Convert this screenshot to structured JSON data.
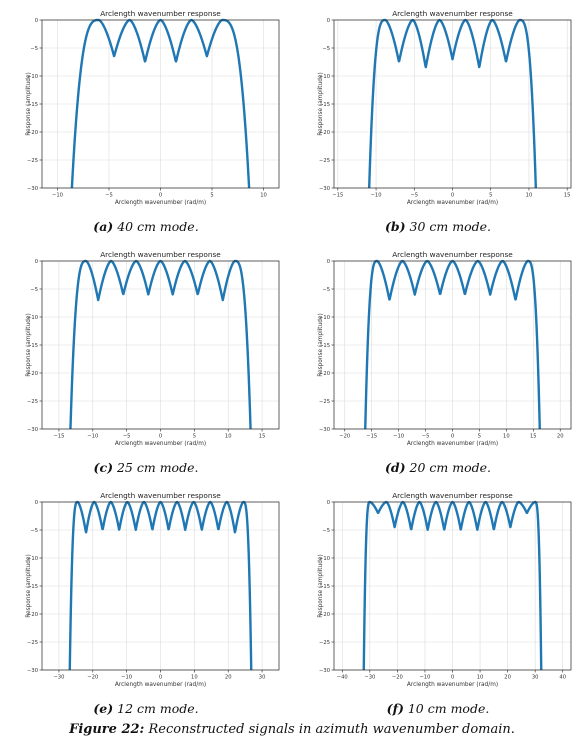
{
  "figure": {
    "caption_label": "Figure 22:",
    "caption_text": "Reconstructed signals in azimuth wavenumber domain."
  },
  "colors": {
    "line": "#1f77b4",
    "grid": "#dcdcdc"
  },
  "chart_data": [
    {
      "panel_label": "(a)",
      "caption": "40 cm mode.",
      "type": "line",
      "title": "Arclength wavenumber response",
      "xlabel": "Arclength wavenumber (rad/m)",
      "ylabel": "Response (amplitude)",
      "xlim": [
        -11.5,
        11.5
      ],
      "ylim": [
        -30,
        0
      ],
      "xticks": [
        -10,
        -5,
        0,
        5,
        10
      ],
      "yticks": [
        0,
        -5,
        -10,
        -15,
        -20,
        -25,
        -30
      ],
      "grid": true,
      "series": [
        {
          "x_edges": [
            -8.6,
            8.6
          ],
          "peaks": [
            -6.0,
            -3.0,
            0.0,
            3.0,
            6.0
          ],
          "dips": [
            {
              "x": -4.5,
              "y": -6.5
            },
            {
              "x": -1.5,
              "y": -7.5
            },
            {
              "x": 1.5,
              "y": -7.5
            },
            {
              "x": 4.5,
              "y": -6.5
            }
          ]
        }
      ]
    },
    {
      "panel_label": "(b)",
      "caption": "30 cm mode.",
      "type": "line",
      "title": "Arclength wavenumber response",
      "xlabel": "Arclength wavenumber (rad/m)",
      "ylabel": "Response (amplitude)",
      "xlim": [
        -15.5,
        15.5
      ],
      "ylim": [
        -30,
        0
      ],
      "xticks": [
        -15,
        -10,
        -5,
        0,
        5,
        10,
        15
      ],
      "yticks": [
        0,
        -5,
        -10,
        -15,
        -20,
        -25,
        -30
      ],
      "grid": true,
      "series": [
        {
          "x_edges": [
            -10.9,
            10.9
          ],
          "peaks": [
            -8.8,
            -5.2,
            -1.7,
            1.7,
            5.2,
            8.8
          ],
          "dips": [
            {
              "x": -7.0,
              "y": -7.5
            },
            {
              "x": -3.5,
              "y": -8.5
            },
            {
              "x": 0.0,
              "y": -7.0
            },
            {
              "x": 3.5,
              "y": -8.5
            },
            {
              "x": 7.0,
              "y": -7.5
            }
          ]
        }
      ]
    },
    {
      "panel_label": "(c)",
      "caption": "25 cm mode.",
      "type": "line",
      "title": "Arclength wavenumber response",
      "xlabel": "Arclength wavenumber (rad/m)",
      "ylabel": "Response (amplitude)",
      "xlim": [
        -17.5,
        17.5
      ],
      "ylim": [
        -30,
        0
      ],
      "xticks": [
        -15,
        -10,
        -5,
        0,
        5,
        10,
        15
      ],
      "yticks": [
        0,
        -5,
        -10,
        -15,
        -20,
        -25,
        -30
      ],
      "grid": true,
      "series": [
        {
          "x_edges": [
            -13.3,
            13.3
          ],
          "peaks": [
            -11.0,
            -7.3,
            -3.6,
            0.0,
            3.6,
            7.3,
            11.0
          ],
          "dips": [
            {
              "x": -9.2,
              "y": -7.0
            },
            {
              "x": -5.5,
              "y": -6.0
            },
            {
              "x": -1.8,
              "y": -6.0
            },
            {
              "x": 1.8,
              "y": -6.0
            },
            {
              "x": 5.5,
              "y": -6.0
            },
            {
              "x": 9.2,
              "y": -7.0
            }
          ]
        }
      ]
    },
    {
      "panel_label": "(d)",
      "caption": "20 cm mode.",
      "type": "line",
      "title": "Arclength wavenumber response",
      "xlabel": "Arclength wavenumber (rad/m)",
      "ylabel": "Response (amplitude)",
      "xlim": [
        -22,
        22
      ],
      "ylim": [
        -30,
        0
      ],
      "xticks": [
        -20,
        -15,
        -10,
        -5,
        0,
        5,
        10,
        15,
        20
      ],
      "yticks": [
        0,
        -5,
        -10,
        -15,
        -20,
        -25,
        -30
      ],
      "grid": true,
      "series": [
        {
          "x_edges": [
            -16.2,
            16.2
          ],
          "peaks": [
            -14.0,
            -9.3,
            -4.7,
            0.0,
            4.7,
            9.3,
            14.0
          ],
          "dips": [
            {
              "x": -11.7,
              "y": -7.0
            },
            {
              "x": -7.0,
              "y": -6.0
            },
            {
              "x": -2.3,
              "y": -6.0
            },
            {
              "x": 2.3,
              "y": -6.0
            },
            {
              "x": 7.0,
              "y": -6.0
            },
            {
              "x": 11.7,
              "y": -7.0
            }
          ]
        }
      ]
    },
    {
      "panel_label": "(e)",
      "caption": "12 cm mode.",
      "type": "line",
      "title": "Arclength wavenumber response",
      "xlabel": "Arclength wavenumber (rad/m)",
      "ylabel": "Response (amplitude)",
      "xlim": [
        -35,
        35
      ],
      "ylim": [
        -30,
        0
      ],
      "xticks": [
        -30,
        -20,
        -10,
        0,
        10,
        20,
        30
      ],
      "yticks": [
        0,
        -5,
        -10,
        -15,
        -20,
        -25,
        -30
      ],
      "grid": true,
      "series": [
        {
          "x_edges": [
            -26.8,
            26.8
          ],
          "peaks": [
            -24.5,
            -19.6,
            -14.7,
            -9.8,
            -4.9,
            0.0,
            4.9,
            9.8,
            14.7,
            19.6,
            24.5
          ],
          "dips": [
            {
              "x": -22.0,
              "y": -5.5
            },
            {
              "x": -17.1,
              "y": -5.0
            },
            {
              "x": -12.2,
              "y": -5.0
            },
            {
              "x": -7.3,
              "y": -5.0
            },
            {
              "x": -2.4,
              "y": -5.0
            },
            {
              "x": 2.4,
              "y": -5.0
            },
            {
              "x": 7.3,
              "y": -5.0
            },
            {
              "x": 12.2,
              "y": -5.0
            },
            {
              "x": 17.1,
              "y": -5.0
            },
            {
              "x": 22.0,
              "y": -5.5
            }
          ]
        }
      ]
    },
    {
      "panel_label": "(f)",
      "caption": "10 cm mode.",
      "type": "line",
      "title": "Arclength wavenumber response",
      "xlabel": "Arclength wavenumber (rad/m)",
      "ylabel": "Response (amplitude)",
      "xlim": [
        -43,
        43
      ],
      "ylim": [
        -30,
        0
      ],
      "xticks": [
        -40,
        -30,
        -20,
        -10,
        0,
        10,
        20,
        30,
        40
      ],
      "yticks": [
        0,
        -5,
        -10,
        -15,
        -20,
        -25,
        -30
      ],
      "grid": true,
      "series": [
        {
          "x_edges": [
            -32.2,
            32.2
          ],
          "peaks": [
            -30.0,
            -24.0,
            -18.0,
            -12.0,
            -6.0,
            0.0,
            6.0,
            12.0,
            18.0,
            24.0,
            30.0
          ],
          "dips": [
            {
              "x": -27.0,
              "y": -2.0
            },
            {
              "x": -21.0,
              "y": -4.5
            },
            {
              "x": -15.0,
              "y": -5.0
            },
            {
              "x": -9.0,
              "y": -5.0
            },
            {
              "x": -3.0,
              "y": -5.0
            },
            {
              "x": 3.0,
              "y": -5.0
            },
            {
              "x": 9.0,
              "y": -5.0
            },
            {
              "x": 15.0,
              "y": -5.0
            },
            {
              "x": 21.0,
              "y": -4.5
            },
            {
              "x": 27.0,
              "y": -2.0
            }
          ]
        }
      ]
    }
  ]
}
